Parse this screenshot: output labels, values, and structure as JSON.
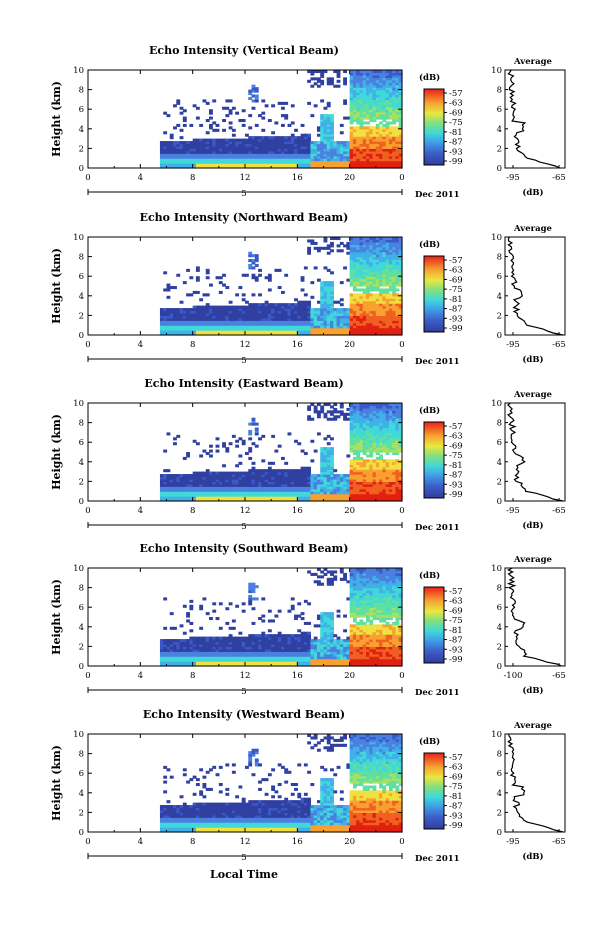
{
  "figure": {
    "xlabel": "Local Time",
    "panels": [
      {
        "title": "Echo Intensity (Vertical Beam)",
        "avg_xticks": [
          "-95",
          "-65"
        ]
      },
      {
        "title": "Echo Intensity (Northward Beam)",
        "avg_xticks": [
          "-95",
          "-65"
        ]
      },
      {
        "title": "Echo Intensity (Eastward Beam)",
        "avg_xticks": [
          "-95",
          "-65"
        ]
      },
      {
        "title": "Echo Intensity (Southward Beam)",
        "avg_xticks": [
          "-100",
          "-65"
        ]
      },
      {
        "title": "Echo Intensity (Westward Beam)",
        "avg_xticks": [
          "-95",
          "-65"
        ]
      }
    ]
  },
  "chart_data": {
    "type": "heatmap",
    "ylabel": "Height (km)",
    "y_ticks": [
      "0",
      "2",
      "4",
      "6",
      "8",
      "10"
    ],
    "ylim": [
      0,
      10
    ],
    "x_ticks": [
      "0",
      "4",
      "8",
      "12",
      "16",
      "20",
      "0"
    ],
    "xlim": [
      0,
      24
    ],
    "date_label": "5",
    "month_label": "Dec 2011",
    "colorbar": {
      "unit": "(dB)",
      "ticks": [
        "-57",
        "-63",
        "-69",
        "-75",
        "-81",
        "-87",
        "-93",
        "-99"
      ]
    },
    "average_profile": {
      "title": "Average",
      "xlabel": "(dB)"
    },
    "colors": [
      "#3040a0",
      "#3a58c8",
      "#4a80e0",
      "#40b0e8",
      "#40d8d8",
      "#60e0a0",
      "#a8e060",
      "#f0e040",
      "#f8a030",
      "#f06020",
      "#e02010"
    ]
  }
}
